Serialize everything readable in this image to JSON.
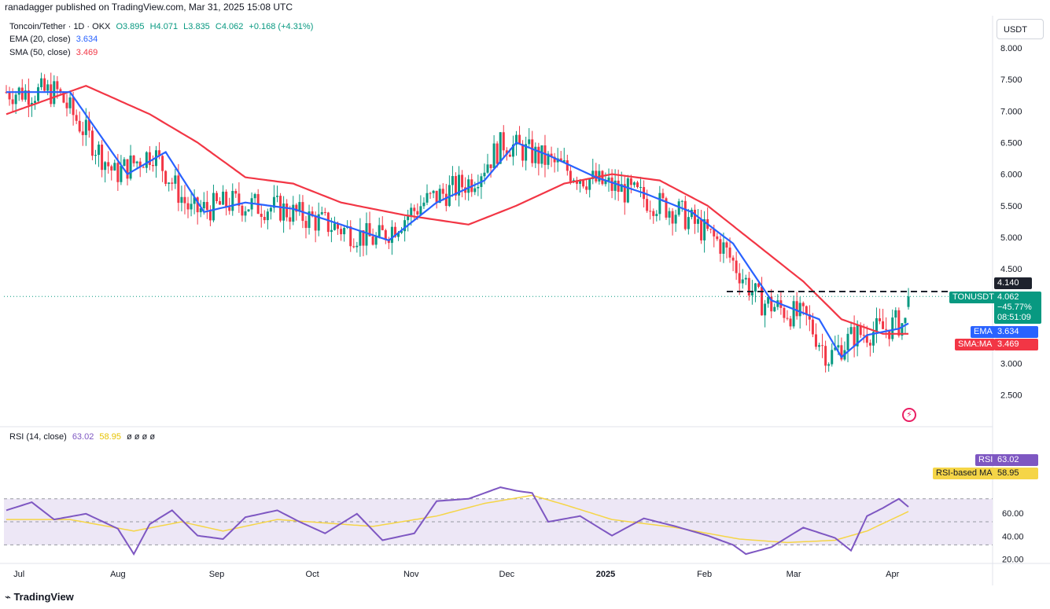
{
  "header": {
    "publisher_text": "ranadagger published on TradingView.com, Mar 31, 2025 15:08 UTC"
  },
  "legend": {
    "symbol": "Toncoin/Tether · 1D · OKX",
    "o": "O3.895",
    "h": "H4.071",
    "l": "L3.835",
    "c": "C4.062",
    "chg": "+0.168 (+4.31%)",
    "ema_label": "EMA (20, close)",
    "ema_value": "3.634",
    "sma_label": "SMA (50, close)",
    "sma_value": "3.469",
    "rsi_label": "RSI (14, close)",
    "rsi_value": "63.02",
    "rsi_ma_value": "58.95",
    "rsi_extra": "ø ø ø ø"
  },
  "price_axis": {
    "currency": "USDT",
    "ticks": [
      "8.000",
      "7.500",
      "7.000",
      "6.500",
      "6.000",
      "5.500",
      "5.000",
      "4.500",
      "3.000",
      "2.500"
    ]
  },
  "rsi_axis": {
    "ticks": [
      "60.00",
      "40.00",
      "20.00"
    ]
  },
  "time_axis": {
    "labels": [
      "Jul",
      "Aug",
      "Sep",
      "Oct",
      "Nov",
      "Dec",
      "2025",
      "Feb",
      "Mar",
      "Apr"
    ]
  },
  "tags": {
    "resistance": "4.140",
    "symbol_name": "TONUSDT",
    "price": "4.062",
    "change": "−45.77%",
    "countdown": "08:51:09",
    "ema_name": "EMA",
    "ema_value": "3.634",
    "sma_name": "SMA:MA",
    "sma_value": "3.469",
    "rsi_name": "RSI",
    "rsi_value": "63.02",
    "rsima_name": "RSI-based MA",
    "rsima_value": "58.95"
  },
  "colors": {
    "up": "#089981",
    "down": "#f23645",
    "ema": "#2962ff",
    "sma": "#f23645",
    "rsi": "#7e57c2",
    "rsi_ma": "#f5d547",
    "rsi_band": "#ede7f6"
  },
  "brand": "TradingView",
  "chart_data": [
    {
      "type": "candlestick",
      "title": "Toncoin/Tether · 1D · OKX",
      "ylabel": "USDT",
      "ylim": [
        2.2,
        8.3
      ],
      "resistance_level": 4.14,
      "x_months": [
        "Jul",
        "Aug",
        "Sep",
        "Oct",
        "Nov",
        "Dec",
        "2025",
        "Feb",
        "Mar",
        "Apr"
      ],
      "series": [
        {
          "name": "EMA (20, close)",
          "key_points": [
            [
              0,
              7.3
            ],
            [
              20,
              7.3
            ],
            [
              38,
              6.0
            ],
            [
              50,
              6.35
            ],
            [
              62,
              5.4
            ],
            [
              75,
              5.55
            ],
            [
              90,
              5.45
            ],
            [
              105,
              5.2
            ],
            [
              120,
              4.95
            ],
            [
              135,
              5.55
            ],
            [
              150,
              5.9
            ],
            [
              160,
              6.5
            ],
            [
              170,
              6.3
            ],
            [
              185,
              5.95
            ],
            [
              200,
              5.7
            ],
            [
              215,
              5.4
            ],
            [
              228,
              4.9
            ],
            [
              240,
              4.0
            ],
            [
              255,
              3.7
            ],
            [
              262,
              3.1
            ],
            [
              270,
              3.45
            ],
            [
              280,
              3.55
            ],
            [
              283,
              3.634
            ]
          ]
        },
        {
          "name": "SMA (50, close)",
          "key_points": [
            [
              0,
              6.95
            ],
            [
              25,
              7.4
            ],
            [
              45,
              6.95
            ],
            [
              60,
              6.5
            ],
            [
              75,
              5.95
            ],
            [
              90,
              5.85
            ],
            [
              105,
              5.55
            ],
            [
              125,
              5.35
            ],
            [
              145,
              5.2
            ],
            [
              160,
              5.5
            ],
            [
              175,
              5.85
            ],
            [
              190,
              6.0
            ],
            [
              205,
              5.9
            ],
            [
              220,
              5.5
            ],
            [
              235,
              4.9
            ],
            [
              250,
              4.3
            ],
            [
              262,
              3.7
            ],
            [
              275,
              3.47
            ],
            [
              283,
              3.469
            ]
          ]
        }
      ],
      "last": {
        "open": 3.895,
        "high": 4.071,
        "low": 3.835,
        "close": 4.062,
        "change": 0.168,
        "change_pct": 4.31
      }
    },
    {
      "type": "line",
      "title": "RSI (14, close)",
      "ylim": [
        15,
        85
      ],
      "bands": [
        30,
        70
      ],
      "series": [
        {
          "name": "RSI",
          "key_points": [
            [
              0,
              60
            ],
            [
              8,
              67
            ],
            [
              15,
              52
            ],
            [
              25,
              57
            ],
            [
              35,
              44
            ],
            [
              40,
              22
            ],
            [
              45,
              48
            ],
            [
              52,
              60
            ],
            [
              60,
              38
            ],
            [
              68,
              35
            ],
            [
              75,
              54
            ],
            [
              85,
              60
            ],
            [
              92,
              50
            ],
            [
              100,
              40
            ],
            [
              110,
              57
            ],
            [
              118,
              34
            ],
            [
              128,
              40
            ],
            [
              135,
              68
            ],
            [
              145,
              70
            ],
            [
              155,
              80
            ],
            [
              160,
              77
            ],
            [
              165,
              75
            ],
            [
              170,
              50
            ],
            [
              180,
              55
            ],
            [
              190,
              38
            ],
            [
              200,
              53
            ],
            [
              210,
              46
            ],
            [
              220,
              38
            ],
            [
              228,
              30
            ],
            [
              232,
              22
            ],
            [
              240,
              28
            ],
            [
              250,
              45
            ],
            [
              260,
              36
            ],
            [
              265,
              25
            ],
            [
              270,
              55
            ],
            [
              275,
              62
            ],
            [
              280,
              70
            ],
            [
              283,
              63.02
            ]
          ]
        },
        {
          "name": "RSI-based MA",
          "key_points": [
            [
              0,
              52
            ],
            [
              20,
              52
            ],
            [
              40,
              42
            ],
            [
              55,
              50
            ],
            [
              68,
              42
            ],
            [
              85,
              52
            ],
            [
              100,
              49
            ],
            [
              115,
              46
            ],
            [
              135,
              55
            ],
            [
              150,
              66
            ],
            [
              165,
              73
            ],
            [
              175,
              65
            ],
            [
              190,
              52
            ],
            [
              210,
              45
            ],
            [
              230,
              35
            ],
            [
              245,
              32
            ],
            [
              260,
              34
            ],
            [
              270,
              42
            ],
            [
              283,
              58.95
            ]
          ]
        }
      ]
    }
  ]
}
